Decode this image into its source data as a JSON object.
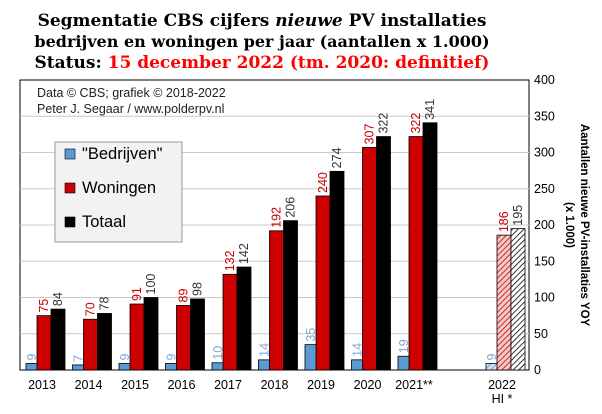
{
  "chart_data": {
    "type": "bar",
    "title_line1_a": "Segmentatie CBS cijfers ",
    "title_line1_b": "nieuwe",
    "title_line1_c": " PV installaties",
    "title_line2": "bedrijven en woningen per jaar (aantallen x 1.000)",
    "title_line3_a": "Status: ",
    "title_line3_b": "15 december 2022 (tm. 2020: definitief)",
    "credit_line1": "Data © CBS; grafiek © 2018-2022",
    "credit_line2": "Peter J. Segaar / www.polderpv.nl",
    "ylabel_line1": "Aantallen nieuwe PV-installaties YOY",
    "ylabel_line2": "(x 1.000)",
    "ylim": [
      0,
      400
    ],
    "yticks": [
      "0",
      "50",
      "100",
      "150",
      "200",
      "250",
      "300",
      "350",
      "400"
    ],
    "grid": true,
    "legend_position": "left",
    "categories": [
      "2013",
      "2014",
      "2015",
      "2016",
      "2017",
      "2018",
      "2019",
      "2020",
      "2021**",
      "2022"
    ],
    "category_sublabels": [
      "",
      "",
      "",
      "",
      "",
      "",
      "",
      "",
      "",
      "HI *"
    ],
    "hatched_categories": [
      "2022"
    ],
    "series": [
      {
        "name": "\"Bedrijven\"",
        "color": "#5b9bd5",
        "label_color": "#7fa7d6",
        "values": [
          9,
          7,
          9,
          9,
          10,
          14,
          35,
          14,
          19,
          9
        ]
      },
      {
        "name": "Woningen",
        "color": "#cc0000",
        "label_color": "#cc0000",
        "values": [
          75,
          70,
          91,
          89,
          132,
          192,
          240,
          307,
          322,
          186
        ]
      },
      {
        "name": "Totaal",
        "color": "#000000",
        "label_color": "#333333",
        "values": [
          84,
          78,
          100,
          98,
          142,
          206,
          274,
          322,
          341,
          195
        ]
      }
    ]
  }
}
